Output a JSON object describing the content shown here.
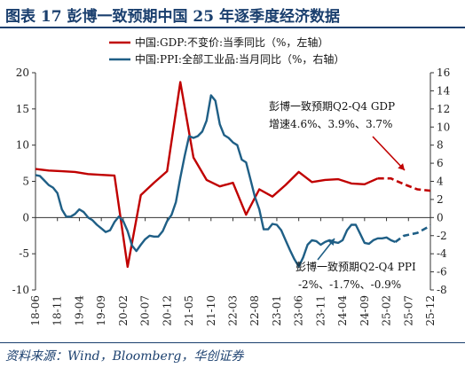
{
  "header": {
    "title": "图表 17 彭博一致预期中国 25 年逐季度经济数据"
  },
  "footer": {
    "source": "资料来源：Wind，Bloomberg，华创证券"
  },
  "colors": {
    "gdp": "#c00000",
    "ppi": "#1f5f86",
    "title": "#1a3f6e"
  },
  "chart_data": {
    "type": "line",
    "xlabel": "",
    "x_ticks": [
      "18-06",
      "18-11",
      "19-04",
      "19-09",
      "20-02",
      "20-07",
      "20-12",
      "21-05",
      "21-10",
      "22-03",
      "22-08",
      "23-01",
      "23-06",
      "23-11",
      "24-04",
      "24-09",
      "25-02",
      "25-07",
      "25-12"
    ],
    "left_axis": {
      "min": -10,
      "max": 20,
      "step": 5,
      "ticks": [
        20,
        15,
        10,
        5,
        0,
        -5,
        -10
      ]
    },
    "right_axis": {
      "min": -8,
      "max": 16,
      "step": 2,
      "ticks": [
        16,
        14,
        12,
        10,
        8,
        6,
        4,
        2,
        0,
        -2,
        -4,
        -6,
        -8
      ]
    },
    "legend_position": "top-center",
    "series": [
      {
        "name": "中国:GDP:不变价:当季同比（%，左轴）",
        "axis": "left",
        "color": "#c00000",
        "points": [
          [
            "2018-06",
            6.7
          ],
          [
            "2018-09",
            6.5
          ],
          [
            "2018-12",
            6.4
          ],
          [
            "2019-03",
            6.3
          ],
          [
            "2019-06",
            6.0
          ],
          [
            "2019-09",
            5.9
          ],
          [
            "2019-12",
            5.8
          ],
          [
            "2020-03",
            -6.8
          ],
          [
            "2020-06",
            3.1
          ],
          [
            "2020-09",
            4.8
          ],
          [
            "2020-12",
            6.4
          ],
          [
            "2021-03",
            18.7
          ],
          [
            "2021-06",
            8.3
          ],
          [
            "2021-09",
            5.2
          ],
          [
            "2021-12",
            4.3
          ],
          [
            "2022-03",
            4.8
          ],
          [
            "2022-06",
            0.4
          ],
          [
            "2022-09",
            3.9
          ],
          [
            "2022-12",
            2.9
          ],
          [
            "2023-03",
            4.5
          ],
          [
            "2023-06",
            6.3
          ],
          [
            "2023-09",
            4.9
          ],
          [
            "2023-12",
            5.2
          ],
          [
            "2024-03",
            5.3
          ],
          [
            "2024-06",
            4.7
          ],
          [
            "2024-09",
            4.6
          ],
          [
            "2024-12",
            5.4
          ]
        ],
        "forecast": [
          [
            "2024-12",
            5.4
          ],
          [
            "2025-03",
            5.4
          ],
          [
            "2025-06",
            4.6
          ],
          [
            "2025-09",
            3.9
          ],
          [
            "2025-12",
            3.7
          ]
        ]
      },
      {
        "name": "中国:PPI:全部工业品:当月同比（%，右轴）",
        "axis": "right",
        "color": "#1f5f86",
        "points": [
          [
            "2018-06",
            4.7
          ],
          [
            "2018-07",
            4.6
          ],
          [
            "2018-08",
            4.1
          ],
          [
            "2018-09",
            3.6
          ],
          [
            "2018-10",
            3.3
          ],
          [
            "2018-11",
            2.7
          ],
          [
            "2018-12",
            0.9
          ],
          [
            "2019-01",
            0.1
          ],
          [
            "2019-02",
            0.1
          ],
          [
            "2019-03",
            0.4
          ],
          [
            "2019-04",
            0.9
          ],
          [
            "2019-05",
            0.6
          ],
          [
            "2019-06",
            0.0
          ],
          [
            "2019-07",
            -0.3
          ],
          [
            "2019-08",
            -0.8
          ],
          [
            "2019-09",
            -1.2
          ],
          [
            "2019-10",
            -1.6
          ],
          [
            "2019-11",
            -1.4
          ],
          [
            "2019-12",
            -0.5
          ],
          [
            "2020-01",
            0.1
          ],
          [
            "2020-02",
            -0.4
          ],
          [
            "2020-03",
            -1.5
          ],
          [
            "2020-04",
            -3.1
          ],
          [
            "2020-05",
            -3.7
          ],
          [
            "2020-06",
            -3.0
          ],
          [
            "2020-07",
            -2.4
          ],
          [
            "2020-08",
            -2.0
          ],
          [
            "2020-09",
            -2.1
          ],
          [
            "2020-10",
            -2.1
          ],
          [
            "2020-11",
            -1.5
          ],
          [
            "2020-12",
            -0.4
          ],
          [
            "2021-01",
            0.3
          ],
          [
            "2021-02",
            1.7
          ],
          [
            "2021-03",
            4.4
          ],
          [
            "2021-04",
            6.8
          ],
          [
            "2021-05",
            9.0
          ],
          [
            "2021-06",
            8.8
          ],
          [
            "2021-07",
            9.0
          ],
          [
            "2021-08",
            9.5
          ],
          [
            "2021-09",
            10.7
          ],
          [
            "2021-10",
            13.5
          ],
          [
            "2021-11",
            12.9
          ],
          [
            "2021-12",
            10.3
          ],
          [
            "2022-01",
            9.1
          ],
          [
            "2022-02",
            8.8
          ],
          [
            "2022-03",
            8.3
          ],
          [
            "2022-04",
            8.0
          ],
          [
            "2022-05",
            6.4
          ],
          [
            "2022-06",
            6.1
          ],
          [
            "2022-07",
            4.2
          ],
          [
            "2022-08",
            2.3
          ],
          [
            "2022-09",
            0.9
          ],
          [
            "2022-10",
            -1.3
          ],
          [
            "2022-11",
            -1.3
          ],
          [
            "2022-12",
            -0.7
          ],
          [
            "2023-01",
            -0.8
          ],
          [
            "2023-02",
            -1.4
          ],
          [
            "2023-03",
            -2.5
          ],
          [
            "2023-04",
            -3.6
          ],
          [
            "2023-05",
            -4.6
          ],
          [
            "2023-06",
            -5.4
          ],
          [
            "2023-07",
            -4.4
          ],
          [
            "2023-08",
            -3.0
          ],
          [
            "2023-09",
            -2.5
          ],
          [
            "2023-10",
            -2.6
          ],
          [
            "2023-11",
            -3.0
          ],
          [
            "2023-12",
            -2.7
          ],
          [
            "2024-01",
            -2.5
          ],
          [
            "2024-02",
            -2.7
          ],
          [
            "2024-03",
            -2.8
          ],
          [
            "2024-04",
            -2.5
          ],
          [
            "2024-05",
            -1.4
          ],
          [
            "2024-06",
            -0.8
          ],
          [
            "2024-07",
            -0.8
          ],
          [
            "2024-08",
            -1.8
          ],
          [
            "2024-09",
            -2.8
          ],
          [
            "2024-10",
            -2.9
          ],
          [
            "2024-11",
            -2.5
          ],
          [
            "2024-12",
            -2.3
          ],
          [
            "2025-01",
            -2.3
          ],
          [
            "2025-02",
            -2.2
          ],
          [
            "2025-03",
            -2.5
          ],
          [
            "2025-04",
            -2.7
          ]
        ],
        "forecast": [
          [
            "2025-04",
            -2.7
          ],
          [
            "2025-06",
            -2.0
          ],
          [
            "2025-09",
            -1.7
          ],
          [
            "2025-12",
            -0.9
          ]
        ]
      }
    ],
    "annotations": [
      {
        "text": "彭博一致预期Q2-Q4 GDP",
        "text2": "增速4.6%、3.9%、3.7%",
        "target": "gdp"
      },
      {
        "text": "彭博一致预期Q2-Q4 PPI",
        "text2": "-2%、-1.7%、-0.9%",
        "target": "ppi"
      }
    ]
  }
}
